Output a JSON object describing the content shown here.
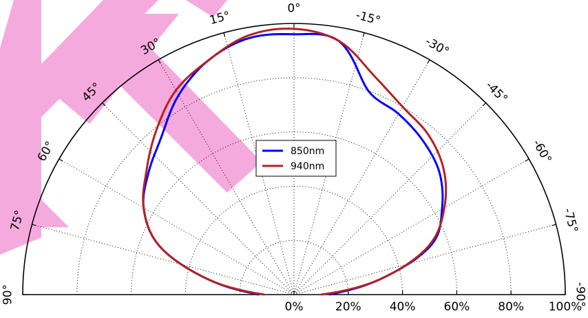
{
  "chart_data": {
    "type": "line",
    "subtype": "polar-half",
    "angle_unit": "degrees",
    "radial_unit": "percent",
    "rlim": [
      0,
      100
    ],
    "thetalim": [
      -90,
      90
    ],
    "grid": true,
    "legend_position": "center",
    "angle_ticks": [
      "90°",
      "75°",
      "60°",
      "45°",
      "30°",
      "15°",
      "0°",
      "-15°",
      "-30°",
      "-45°",
      "-60°",
      "-75°",
      "-90°"
    ],
    "angle_tick_values": [
      90,
      75,
      60,
      45,
      30,
      15,
      0,
      -15,
      -30,
      -45,
      -60,
      -75,
      -90
    ],
    "radial_ticks": [
      "0%",
      "20%",
      "40%",
      "60%",
      "80%",
      "100%"
    ],
    "radial_tick_values": [
      0,
      20,
      40,
      60,
      80,
      100
    ],
    "series": [
      {
        "name": "850nm",
        "color": "#0000ff",
        "angles": [
          -90,
          -80,
          -70,
          -60,
          -50,
          -40,
          -30,
          -20,
          -10,
          0,
          10,
          20,
          30,
          40,
          50,
          60,
          70,
          80,
          90
        ],
        "values": [
          13,
          32,
          54,
          63,
          70,
          74,
          77,
          80,
          95,
          96,
          96,
          92,
          85,
          76,
          70,
          64,
          53,
          32,
          13
        ]
      },
      {
        "name": "940nm",
        "color": "#b22222",
        "angles": [
          -90,
          -80,
          -70,
          -60,
          -50,
          -40,
          -30,
          -20,
          -10,
          0,
          10,
          20,
          30,
          40,
          50,
          60,
          70,
          80,
          90
        ],
        "values": [
          10,
          32,
          53,
          64,
          72,
          77,
          80,
          86,
          95,
          98,
          97,
          92,
          87,
          79,
          71,
          64,
          53,
          32,
          11
        ]
      }
    ],
    "watermark_color": "#f5aadd"
  }
}
